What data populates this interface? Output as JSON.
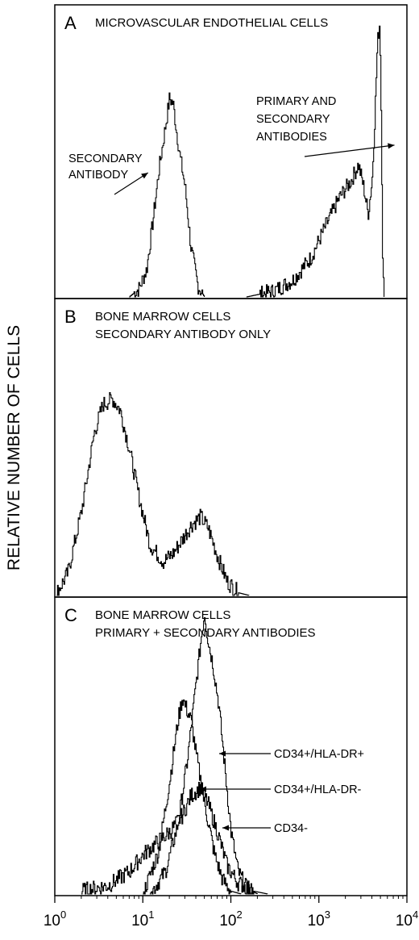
{
  "figure": {
    "ylabel": "RELATIVE NUMBER OF CELLS"
  },
  "chart_data": {
    "type": "area",
    "ylabel": "RELATIVE NUMBER OF CELLS",
    "x_scale": "log10",
    "xlim": [
      1,
      10000
    ],
    "x_ticks": [
      {
        "value": 1,
        "base": "10",
        "exp": "0"
      },
      {
        "value": 10,
        "base": "10",
        "exp": "1"
      },
      {
        "value": 100,
        "base": "10",
        "exp": "2"
      },
      {
        "value": 1000,
        "base": "10",
        "exp": "3"
      },
      {
        "value": 10000,
        "base": "10",
        "exp": "4"
      }
    ],
    "panels": [
      {
        "letter": "A",
        "title": "MICROVASCULAR ENDOTHELIAL CELLS",
        "ylim": [
          0,
          100
        ],
        "series": [
          {
            "x": [
              7,
              9,
              11,
              13,
              15,
              18,
              20,
              22,
              24,
              26,
              30,
              35,
              42,
              50
            ],
            "y": [
              0,
              3,
              10,
              28,
              45,
              62,
              72,
              70,
              60,
              52,
              40,
              18,
              4,
              0
            ]
          },
          {
            "x": [
              150,
              300,
              500,
              800,
              1200,
              1700,
              2300,
              2800,
              3200,
              3600,
              4000,
              4300,
              4600,
              4900,
              5100,
              5300,
              5500
            ],
            "y": [
              0,
              2,
              6,
              14,
              26,
              36,
              42,
              48,
              40,
              30,
              42,
              65,
              92,
              100,
              60,
              10,
              0
            ]
          }
        ],
        "annotations": [
          {
            "lines": [
              "SECONDARY",
              "ANTIBODY"
            ],
            "target": [
              13,
              45
            ]
          },
          {
            "lines": [
              "PRIMARY AND",
              "SECONDARY",
              "ANTIBODIES"
            ],
            "target": [
              4000,
              55
            ]
          }
        ]
      },
      {
        "letter": "B",
        "title": "BONE MARROW CELLS",
        "subtitle": "SECONDARY ANTIBODY ONLY",
        "ylim": [
          0,
          100
        ],
        "series": [
          {
            "x": [
              1.05,
              1.4,
              2,
              2.8,
              3.5,
              4.5,
              5.5,
              7,
              9,
              12,
              17,
              22,
              28,
              35,
              45,
              55,
              70,
              90,
              120,
              160
            ],
            "y": [
              1,
              8,
              30,
              58,
              68,
              70,
              66,
              52,
              35,
              18,
              12,
              15,
              20,
              25,
              28,
              24,
              14,
              5,
              1,
              0
            ]
          }
        ]
      },
      {
        "letter": "C",
        "title": "BONE MARROW CELLS",
        "subtitle": "PRIMARY + SECONDARY ANTIBODIES",
        "ylim": [
          0,
          100
        ],
        "series": [
          {
            "name": "CD34+/HLA-DR+",
            "x": [
              12,
              18,
              25,
              32,
              40,
              46,
              50,
              55,
              62,
              72,
              85,
              100,
              120,
              150,
              200
            ],
            "y": [
              0,
              8,
              25,
              48,
              75,
              92,
              100,
              90,
              82,
              68,
              45,
              22,
              8,
              2,
              0
            ]
          },
          {
            "name": "CD34+/HLA-DR-",
            "x": [
              10,
              15,
              20,
              25,
              28,
              31,
              35,
              40,
              50,
              65,
              80,
              100,
              130
            ],
            "y": [
              0,
              15,
              40,
              62,
              70,
              66,
              62,
              50,
              32,
              14,
              5,
              1,
              0
            ]
          },
          {
            "name": "CD34-",
            "x": [
              2,
              4,
              7,
              10,
              14,
              20,
              28,
              35,
              45,
              55,
              70,
              90,
              120,
              180,
              260
            ],
            "y": [
              1,
              3,
              8,
              14,
              18,
              22,
              28,
              35,
              38,
              32,
              22,
              10,
              4,
              1,
              0
            ]
          }
        ]
      }
    ]
  }
}
